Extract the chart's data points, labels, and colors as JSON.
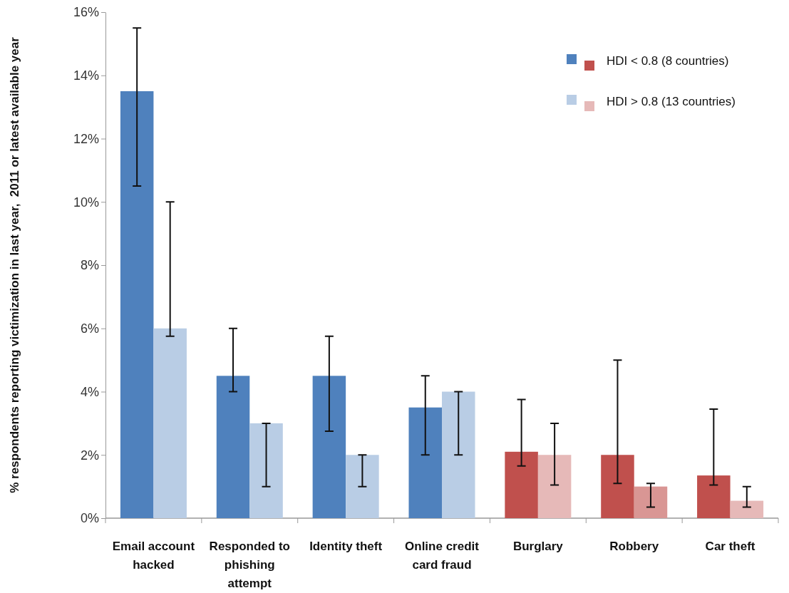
{
  "chart_data": {
    "type": "bar",
    "ylabel": "% respondents reporting victimization in last year,  2011 or latest available year",
    "categories": [
      "Email account hacked",
      "Responded to phishing attempt",
      "Identity theft",
      "Online credit card fraud",
      "Burglary",
      "Robbery",
      "Car theft"
    ],
    "series": [
      {
        "name": "HDI < 0.8 (8 countries)",
        "colors": [
          "#4f81bd",
          "#4f81bd",
          "#4f81bd",
          "#4f81bd",
          "#c0504d",
          "#c0504d",
          "#c0504d"
        ],
        "values": [
          13.5,
          4.5,
          4.5,
          3.5,
          2.1,
          2.0,
          1.35
        ],
        "errors": [
          [
            10.5,
            15.5
          ],
          [
            4.0,
            6.0
          ],
          [
            2.75,
            5.75
          ],
          [
            2.0,
            4.5
          ],
          [
            1.65,
            3.75
          ],
          [
            1.1,
            5.0
          ],
          [
            1.05,
            3.45
          ]
        ]
      },
      {
        "name": "HDI > 0.8 (13 countries)",
        "colors": [
          "#b9cde5",
          "#b9cde5",
          "#b9cde5",
          "#b9cde5",
          "#e6b9b8",
          "#d99694",
          "#e6b9b8"
        ],
        "values": [
          6.0,
          3.0,
          2.0,
          4.0,
          2.0,
          1.0,
          0.55
        ],
        "errors": [
          [
            5.75,
            10.0
          ],
          [
            1.0,
            3.0
          ],
          [
            1.0,
            2.0
          ],
          [
            2.0,
            4.0
          ],
          [
            1.05,
            3.0
          ],
          [
            0.35,
            1.1
          ],
          [
            0.35,
            1.0
          ]
        ]
      }
    ],
    "ylim": [
      0,
      16
    ],
    "yticks": [
      {
        "value": 0,
        "label": "0%"
      },
      {
        "value": 2,
        "label": "2%"
      },
      {
        "value": 4,
        "label": "4%"
      },
      {
        "value": 6,
        "label": "6%"
      },
      {
        "value": 8,
        "label": "8%"
      },
      {
        "value": 10,
        "label": "10%"
      },
      {
        "value": 12,
        "label": "12%"
      },
      {
        "value": 14,
        "label": "14%"
      },
      {
        "value": 16,
        "label": "16%"
      }
    ],
    "grid": false,
    "legend": "top right"
  }
}
